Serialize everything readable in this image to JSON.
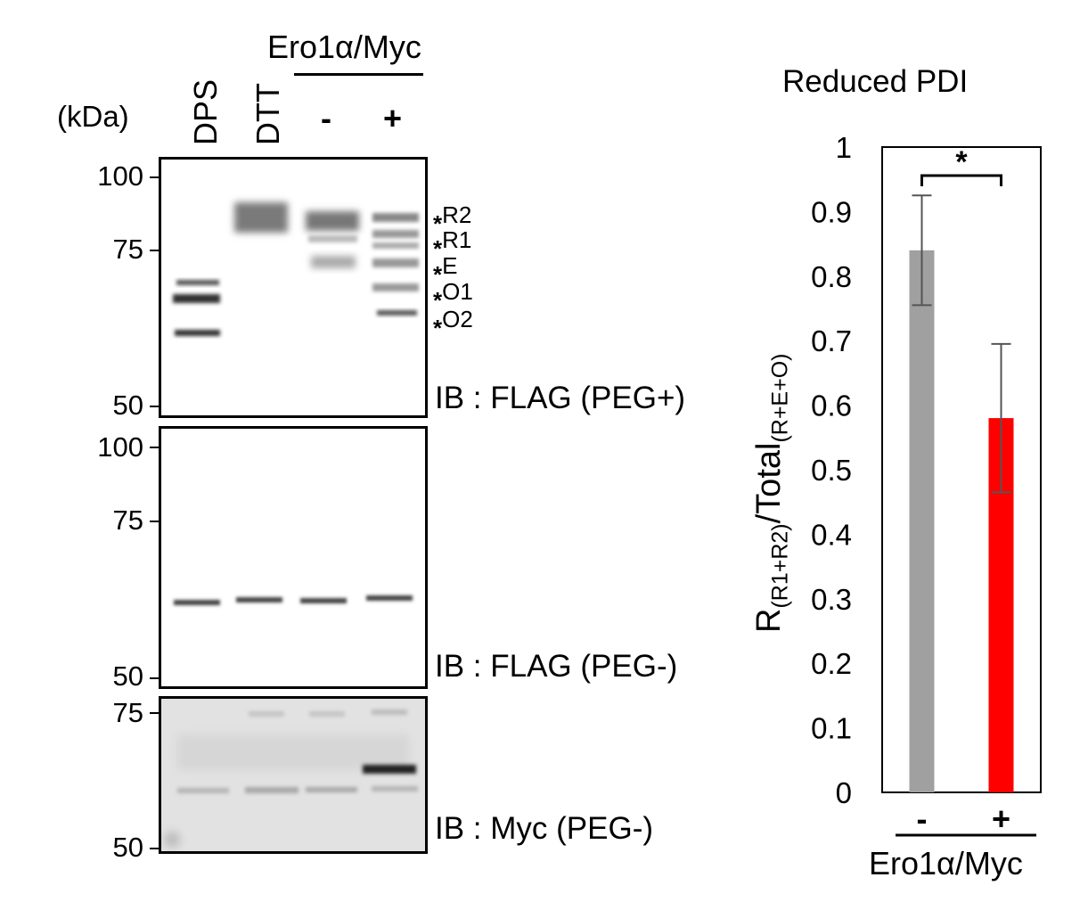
{
  "western_blot": {
    "kda_label": "(kDa)",
    "ero_header": "Ero1α/Myc",
    "lanes": [
      "DPS",
      "DTT",
      "-",
      "+"
    ],
    "panels": [
      {
        "label": "IB : FLAG (PEG+)",
        "markers": [
          "100",
          "75",
          "50"
        ],
        "band_labels": [
          {
            "star": "*",
            "name": "R2"
          },
          {
            "star": "*",
            "name": "R1"
          },
          {
            "star": "*",
            "name": "E"
          },
          {
            "star": "*",
            "name": "O1"
          },
          {
            "star": "*",
            "name": "O2"
          }
        ]
      },
      {
        "label": "IB : FLAG (PEG-)",
        "markers": [
          "100",
          "75",
          "50"
        ]
      },
      {
        "label": "IB : Myc (PEG-)",
        "markers": [
          "75",
          "50"
        ]
      }
    ]
  },
  "chart_data": {
    "type": "bar",
    "title": "Reduced PDI",
    "ylabel_main": "R",
    "ylabel_sub1": "(R1+R2)",
    "ylabel_mid": "/Total",
    "ylabel_sub2": "(R+E+O)",
    "xlabel": "Ero1α/Myc",
    "categories": [
      "-",
      "+"
    ],
    "values": [
      0.84,
      0.58
    ],
    "error": [
      0.085,
      0.115
    ],
    "colors": [
      "#a0a0a0",
      "#ff0000"
    ],
    "error_color": "#555555",
    "ylim": [
      0,
      1
    ],
    "yticks": [
      "0",
      "0.1",
      "0.2",
      "0.3",
      "0.4",
      "0.5",
      "0.6",
      "0.7",
      "0.8",
      "0.9",
      "1"
    ],
    "significance": "*"
  }
}
